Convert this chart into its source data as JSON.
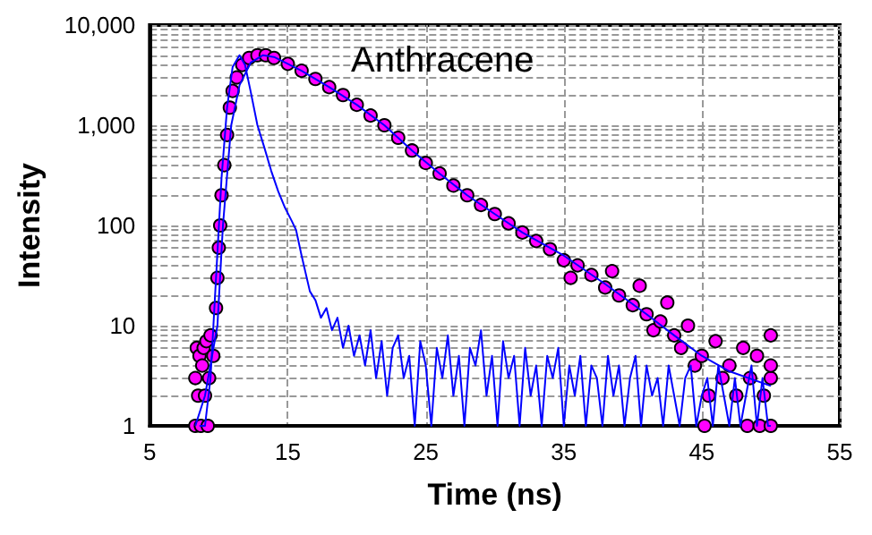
{
  "chart_data": {
    "type": "scatter",
    "xlabel": "Time (ns)",
    "ylabel": "Intensity",
    "annotations": [
      "Anthracene"
    ],
    "xlim": [
      5,
      55
    ],
    "xticks": [
      5,
      15,
      25,
      35,
      45,
      55
    ],
    "ylim": [
      1,
      10000
    ],
    "yticks": [
      1,
      {
        "value": 2,
        "label": null
      },
      {
        "value": 3,
        "label": null
      },
      {
        "value": 4,
        "label": null
      },
      {
        "value": 5,
        "label": null
      },
      {
        "value": 6,
        "label": null
      },
      {
        "value": 7,
        "label": null
      },
      {
        "value": 8,
        "label": null
      },
      {
        "value": 9,
        "label": null
      },
      10,
      {
        "value": 20,
        "label": null
      },
      {
        "value": 30,
        "label": null
      },
      {
        "value": 40,
        "label": null
      },
      {
        "value": 50,
        "label": null
      },
      {
        "value": 60,
        "label": null
      },
      {
        "value": 70,
        "label": null
      },
      {
        "value": 80,
        "label": null
      },
      {
        "value": 90,
        "label": null
      },
      100,
      {
        "value": 200,
        "label": null
      },
      {
        "value": 300,
        "label": null
      },
      {
        "value": 400,
        "label": null
      },
      {
        "value": 500,
        "label": null
      },
      {
        "value": 600,
        "label": null
      },
      {
        "value": 700,
        "label": null
      },
      {
        "value": 800,
        "label": null
      },
      {
        "value": 900,
        "label": null
      },
      {
        "value": 1000,
        "label": "1,000"
      },
      {
        "value": 2000,
        "label": null
      },
      {
        "value": 3000,
        "label": null
      },
      {
        "value": 4000,
        "label": null
      },
      {
        "value": 5000,
        "label": null
      },
      {
        "value": 6000,
        "label": null
      },
      {
        "value": 7000,
        "label": null
      },
      {
        "value": 8000,
        "label": null
      },
      {
        "value": 9000,
        "label": null
      },
      {
        "value": 10000,
        "label": "10,000"
      }
    ],
    "log": "y",
    "grid": true,
    "series": [
      {
        "type": "line",
        "color": "#0000ff",
        "marker": "none",
        "x": [
          8.6,
          9.0,
          9.4,
          9.8,
          10.2,
          10.6,
          11.0,
          11.5,
          11.9,
          12.3,
          12.8,
          13.3,
          13.8,
          14.3,
          14.8,
          15.3,
          15.6,
          16.0,
          16.6,
          17.0,
          17.4,
          17.8,
          18.2,
          18.6,
          19.0,
          19.4,
          19.8,
          20.2,
          20.6,
          21.0,
          21.4,
          21.8,
          22.2,
          22.6,
          23.0,
          23.4,
          23.8,
          24.2,
          24.6,
          25.0,
          25.4,
          25.8,
          26.2,
          26.6,
          27.0,
          27.4,
          27.8,
          28.2,
          28.6,
          29.0,
          29.4,
          29.8,
          30.2,
          30.6,
          31.0,
          31.4,
          31.8,
          32.2,
          32.6,
          33.0,
          33.4,
          33.8,
          34.2,
          34.6,
          35.0,
          35.4,
          35.8,
          36.2,
          36.6,
          37.0,
          37.4,
          37.8,
          38.2,
          38.6,
          39.0,
          39.4,
          39.8,
          40.2,
          40.6,
          41.0,
          41.4,
          41.8,
          42.2,
          42.6,
          43.0,
          43.4,
          43.8,
          44.2,
          44.6,
          45.0,
          45.4,
          45.8,
          46.2,
          46.6,
          47.0,
          47.4,
          47.8,
          48.2,
          48.6,
          49.0,
          49.4,
          49.8,
          50.0
        ],
        "values": [
          1,
          1,
          3,
          30,
          300,
          1500,
          3800,
          5000,
          4000,
          2200,
          1000,
          600,
          350,
          220,
          150,
          110,
          90,
          50,
          22,
          18,
          12,
          15,
          9,
          12,
          6,
          10,
          5,
          8,
          4,
          9,
          3,
          7,
          2,
          6,
          8,
          3,
          5,
          1,
          7,
          4,
          1,
          6,
          3,
          8,
          2,
          5,
          1,
          6,
          4,
          9,
          2,
          5,
          1,
          7,
          3,
          5,
          1,
          6,
          2,
          4,
          1,
          5,
          3,
          6,
          1,
          4,
          2,
          5,
          1,
          4,
          3,
          1,
          5,
          2,
          4,
          1,
          3,
          5,
          1,
          4,
          2,
          3,
          1,
          4,
          2,
          1,
          3,
          4,
          1,
          2,
          3,
          1,
          4,
          2,
          1,
          3,
          1,
          2,
          4,
          1,
          3,
          1,
          1
        ]
      },
      {
        "color": "#ff00ff",
        "marker": "circle",
        "x": [
          8.3,
          8.3,
          8.4,
          8.5,
          8.6,
          8.7,
          8.8,
          8.9,
          9.0,
          9.1,
          9.2,
          9.3,
          9.4,
          9.6,
          9.8,
          9.9,
          10.0,
          10.1,
          10.2,
          10.4,
          10.6,
          10.8,
          11.0,
          11.3,
          11.7,
          12.2,
          12.8,
          13.4,
          14.0,
          15,
          16,
          17,
          18,
          19,
          20,
          21,
          22,
          23,
          24,
          25,
          26,
          27,
          28,
          29,
          30,
          31,
          32,
          33,
          34,
          35,
          35.5,
          36,
          37,
          38,
          38.5,
          39,
          40,
          40.5,
          41,
          41.5,
          42,
          42.5,
          43,
          43.5,
          44,
          44.5,
          45,
          45.2,
          45.5,
          46,
          46.5,
          47,
          47.5,
          48,
          48.3,
          48.5,
          49,
          49.2,
          49.5,
          50,
          50,
          50,
          50
        ],
        "values": [
          1,
          3,
          6,
          2,
          5,
          1,
          4,
          6,
          2,
          7,
          1,
          3,
          8,
          5,
          15,
          30,
          60,
          100,
          200,
          400,
          800,
          1500,
          2200,
          3000,
          4000,
          4700,
          5000,
          5000,
          4700,
          4100,
          3500,
          2900,
          2400,
          2000,
          1600,
          1250,
          1000,
          750,
          560,
          420,
          330,
          250,
          200,
          160,
          130,
          105,
          85,
          70,
          58,
          45,
          30,
          40,
          32,
          24,
          35,
          20,
          16,
          25,
          13,
          9,
          11,
          17,
          8,
          6,
          10,
          4,
          5,
          1,
          2,
          7,
          3,
          4,
          2,
          6,
          1,
          3,
          5,
          1,
          2,
          3,
          8,
          1,
          4
        ]
      },
      {
        "type": "line",
        "color": "#0000ff",
        "marker": "none",
        "x": [
          8.3,
          9.0,
          9.9,
          10.3,
          10.9,
          11.5,
          12.3,
          13.2,
          14,
          16,
          18,
          20,
          22,
          24,
          26,
          28,
          30,
          32,
          35,
          38,
          41,
          43,
          45,
          47,
          50
        ],
        "values": [
          1,
          2,
          10,
          100,
          1000,
          2500,
          4200,
          5000,
          4800,
          3500,
          2400,
          1600,
          1000,
          560,
          330,
          200,
          130,
          85,
          50,
          26,
          13,
          8,
          5,
          3.5,
          2.5
        ]
      }
    ]
  }
}
